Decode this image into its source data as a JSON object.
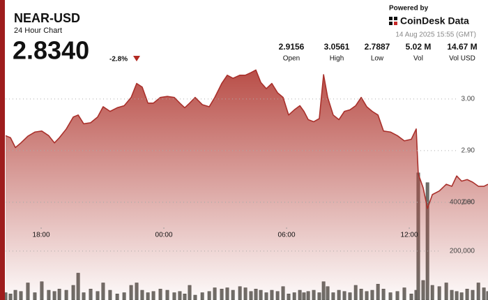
{
  "header": {
    "title": "NEAR-USD",
    "subtitle": "24 Hour Chart",
    "price": "2.8340",
    "change": "-2.8%",
    "powered_by": "Powered by",
    "brand": "CoinDesk Data",
    "timestamp": "14 Aug 2025 15:55 (GMT)"
  },
  "stats": [
    {
      "value": "2.9156",
      "label": "Open"
    },
    {
      "value": "3.0561",
      "label": "High"
    },
    {
      "value": "2.7887",
      "label": "Low"
    },
    {
      "value": "5.02 M",
      "label": "Vol"
    },
    {
      "value": "14.67 M",
      "label": "Vol USD"
    }
  ],
  "chart_data": {
    "type": "line",
    "area": true,
    "x": [
      -7.74,
      -7.5,
      -7.26,
      -6.99,
      -6.65,
      -6.31,
      -5.97,
      -5.63,
      -5.35,
      -5.11,
      -4.77,
      -4.43,
      -4.19,
      -3.92,
      -3.58,
      -3.24,
      -2.97,
      -2.63,
      -2.28,
      -1.94,
      -1.6,
      -1.33,
      -1.06,
      -0.78,
      -0.51,
      -0.17,
      0.17,
      0.51,
      0.78,
      1.02,
      1.26,
      1.53,
      1.88,
      2.22,
      2.49,
      2.83,
      3.1,
      3.38,
      3.72,
      3.99,
      4.26,
      4.5,
      4.74,
      5.01,
      5.28,
      5.56,
      5.83,
      6.1,
      6.38,
      6.65,
      6.85,
      7.06,
      7.33,
      7.6,
      7.81,
      8.01,
      8.28,
      8.56,
      8.83,
      9.1,
      9.38,
      9.65,
      9.92,
      10.19,
      10.47,
      10.74,
      11.08,
      11.42,
      11.76,
      12.1,
      12.34,
      12.44,
      12.68,
      12.89,
      13.13,
      13.47,
      13.81,
      14.08,
      14.32,
      14.56,
      14.83,
      15.1,
      15.38,
      15.65,
      15.85
    ],
    "series": [
      {
        "color": "#a9302b",
        "values": [
          2.929,
          2.925,
          2.906,
          2.915,
          2.928,
          2.936,
          2.938,
          2.929,
          2.915,
          2.925,
          2.942,
          2.965,
          2.969,
          2.952,
          2.954,
          2.965,
          2.985,
          2.976,
          2.983,
          2.987,
          3.003,
          3.03,
          3.023,
          2.992,
          2.992,
          3.003,
          3.005,
          3.003,
          2.992,
          2.983,
          2.992,
          3.003,
          2.989,
          2.985,
          3.003,
          3.03,
          3.046,
          3.04,
          3.046,
          3.046,
          3.051,
          3.056,
          3.032,
          3.02,
          3.03,
          3.012,
          3.003,
          2.969,
          2.979,
          2.987,
          2.976,
          2.96,
          2.956,
          2.962,
          3.047,
          3.003,
          2.969,
          2.96,
          2.976,
          2.979,
          2.987,
          3.003,
          2.985,
          2.976,
          2.969,
          2.938,
          2.936,
          2.929,
          2.919,
          2.922,
          2.942,
          2.855,
          2.828,
          2.788,
          2.815,
          2.822,
          2.835,
          2.831,
          2.851,
          2.841,
          2.844,
          2.839,
          2.831,
          2.831,
          2.835
        ]
      },
      {
        "type": "bar",
        "axis": "y2",
        "color": "#6e6e69",
        "values": [
          30000,
          25000,
          40000,
          35000,
          70000,
          30000,
          75000,
          40000,
          35000,
          45000,
          40000,
          60000,
          110000,
          30000,
          45000,
          35000,
          70000,
          40000,
          25000,
          30000,
          60000,
          70000,
          40000,
          30000,
          35000,
          45000,
          40000,
          30000,
          35000,
          25000,
          60000,
          20000,
          30000,
          35000,
          50000,
          45000,
          50000,
          40000,
          55000,
          50000,
          35000,
          45000,
          40000,
          30000,
          40000,
          35000,
          55000,
          25000,
          30000,
          40000,
          30000,
          35000,
          40000,
          30000,
          75000,
          55000,
          30000,
          40000,
          35000,
          30000,
          60000,
          45000,
          35000,
          40000,
          65000,
          45000,
          30000,
          35000,
          50000,
          25000,
          40000,
          520000,
          80000,
          480000,
          60000,
          55000,
          70000,
          40000,
          35000,
          30000,
          45000,
          40000,
          70000,
          50000,
          35000
        ]
      }
    ],
    "xlim": [
      -7.74,
      15.85
    ],
    "xticks": [
      {
        "value": -6,
        "label": "18:00"
      },
      {
        "value": 0,
        "label": "00:00"
      },
      {
        "value": 6,
        "label": "06:00"
      },
      {
        "value": 12,
        "label": "12:00"
      }
    ],
    "ylim": [
      2.611,
      3.07
    ],
    "yticks": [
      {
        "value": 2.8,
        "label": "2.80"
      },
      {
        "value": 2.9,
        "label": "2.90"
      },
      {
        "value": 3.0,
        "label": "3.00"
      }
    ],
    "y2lim": [
      0,
      970000
    ],
    "y2ticks": [
      {
        "value": 200000,
        "label": "200,000"
      },
      {
        "value": 400000,
        "label": "400,000"
      }
    ],
    "grid": true
  }
}
